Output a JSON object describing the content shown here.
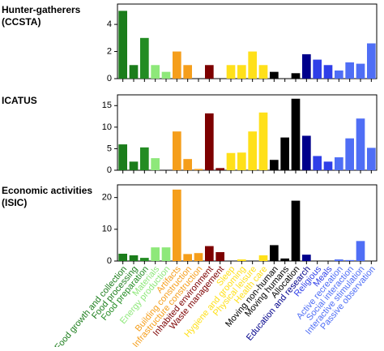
{
  "chart_data": {
    "type": "bar",
    "categories": [
      "Food growth and collection",
      "Food processing",
      "Food preparation",
      "Materials",
      "Energy production",
      "Artifacts",
      "Building construction",
      "Infrastructure construction",
      "Inhabited environment",
      "Waste management",
      "Sleep",
      "Hygiene and grooming",
      "Physical leisure",
      "Health care",
      "Moving non-human",
      "Moving humans",
      "Allocation",
      "Education and research",
      "Religious",
      "Meals",
      "Active recreation",
      "Social interaction",
      "Interactive stimulation",
      "Passive observation"
    ],
    "colors": [
      "#1b7d1b",
      "#1b7d1b",
      "#238c23",
      "#8ee87a",
      "#8ee87a",
      "#f59e1b",
      "#f59e1b",
      "#f59e1b",
      "#7d0000",
      "#7d0000",
      "#ffe01a",
      "#ffe01a",
      "#ffe01a",
      "#ffe01a",
      "#000000",
      "#000000",
      "#000000",
      "#00008b",
      "#2f3fe8",
      "#2f3fe8",
      "#4f6ef5",
      "#4f6ef5",
      "#4f6ef5",
      "#4f6ef5"
    ],
    "panels": [
      {
        "title": [
          "Hunter-gatherers",
          "(CCSTA)"
        ],
        "values": [
          5,
          1,
          3,
          1,
          0.5,
          2,
          1,
          0,
          1,
          0,
          1,
          1,
          2,
          1,
          0.5,
          0,
          0.4,
          1.8,
          1.4,
          1,
          0.6,
          1.2,
          1.1,
          2.6
        ],
        "ylim": [
          0,
          5.5
        ],
        "yticks": [
          0,
          2,
          4
        ]
      },
      {
        "title": [
          "ICATUS"
        ],
        "values": [
          6,
          2,
          5.3,
          2.8,
          0,
          9,
          2.6,
          0.3,
          13.2,
          0.5,
          4,
          4.1,
          9,
          13.4,
          2.4,
          7.6,
          16.6,
          8,
          3.3,
          2,
          3,
          7.4,
          12,
          5.2
        ],
        "ylim": [
          0,
          17.5
        ],
        "yticks": [
          0,
          5,
          10,
          15
        ]
      },
      {
        "title": [
          "Economic activities",
          "(ISIC)"
        ],
        "values": [
          2.3,
          1.8,
          1,
          4.3,
          4.3,
          22.5,
          2.2,
          2.5,
          4.7,
          2.8,
          0,
          0.5,
          0,
          1.8,
          5,
          0.8,
          19,
          2,
          0,
          0,
          0.5,
          0.3,
          6.3,
          0
        ],
        "ylim": [
          0,
          24
        ],
        "yticks": [
          0,
          10,
          20
        ]
      }
    ]
  }
}
